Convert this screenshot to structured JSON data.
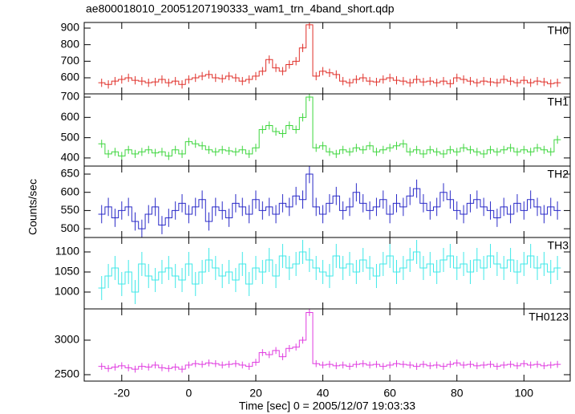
{
  "chart_data": [
    {
      "type": "step",
      "title": "ae800018010_20051207190333_wam1_trn_4band_short.qdp",
      "label": "TH0",
      "color": "#e0302a",
      "error": 25,
      "x": [
        -26,
        -24,
        -22,
        -20,
        -18,
        -16,
        -14,
        -12,
        -10,
        -8,
        -6,
        -4,
        -2,
        0,
        2,
        4,
        6,
        8,
        10,
        12,
        14,
        16,
        18,
        20,
        22,
        24,
        26,
        28,
        30,
        32,
        34,
        36,
        38,
        40,
        42,
        44,
        46,
        48,
        50,
        52,
        54,
        56,
        58,
        60,
        62,
        64,
        66,
        68,
        70,
        72,
        74,
        76,
        78,
        80,
        82,
        84,
        86,
        88,
        90,
        92,
        94,
        96,
        98,
        100,
        102,
        104,
        106,
        108,
        110
      ],
      "values": [
        570,
        560,
        580,
        590,
        600,
        585,
        580,
        570,
        575,
        590,
        570,
        580,
        560,
        590,
        600,
        610,
        620,
        600,
        595,
        610,
        600,
        580,
        590,
        610,
        640,
        710,
        660,
        640,
        680,
        700,
        780,
        920,
        610,
        640,
        630,
        620,
        580,
        570,
        590,
        600,
        580,
        575,
        590,
        600,
        585,
        580,
        570,
        590,
        575,
        580,
        570,
        580,
        565,
        600,
        590,
        580,
        570,
        580,
        575,
        570,
        590,
        580,
        570,
        585,
        570,
        580,
        575,
        565,
        570
      ],
      "xlim": [
        -31.2,
        113.8
      ],
      "ylim": [
        503,
        934
      ],
      "yticks": [
        600,
        700,
        800,
        900
      ]
    },
    {
      "type": "step",
      "label": "TH1",
      "color": "#3ed63e",
      "error": 20,
      "x": [
        -26,
        -24,
        -22,
        -20,
        -18,
        -16,
        -14,
        -12,
        -10,
        -8,
        -6,
        -4,
        -2,
        0,
        2,
        4,
        6,
        8,
        10,
        12,
        14,
        16,
        18,
        20,
        22,
        24,
        26,
        28,
        30,
        32,
        34,
        36,
        38,
        40,
        42,
        44,
        46,
        48,
        50,
        52,
        54,
        56,
        58,
        60,
        62,
        64,
        66,
        68,
        70,
        72,
        74,
        76,
        78,
        80,
        82,
        84,
        86,
        88,
        90,
        92,
        94,
        96,
        98,
        100,
        102,
        104,
        106,
        108,
        110
      ],
      "values": [
        470,
        420,
        430,
        410,
        440,
        420,
        430,
        440,
        425,
        430,
        410,
        440,
        420,
        480,
        470,
        460,
        440,
        430,
        440,
        435,
        430,
        440,
        420,
        450,
        540,
        560,
        530,
        520,
        560,
        540,
        600,
        700,
        450,
        460,
        430,
        420,
        440,
        430,
        450,
        440,
        460,
        430,
        440,
        450,
        460,
        470,
        430,
        440,
        420,
        440,
        430,
        420,
        440,
        430,
        450,
        440,
        430,
        420,
        440,
        430,
        440,
        450,
        430,
        440,
        430,
        450,
        440,
        430,
        490
      ],
      "xlim": [
        -31.2,
        113.8
      ],
      "ylim": [
        360,
        716
      ],
      "yticks": [
        400,
        500,
        600,
        700
      ]
    },
    {
      "type": "step",
      "label": "TH2",
      "color": "#2a2ac8",
      "error": 25,
      "ylabel": "Counts/sec",
      "x": [
        -26,
        -24,
        -22,
        -20,
        -18,
        -16,
        -14,
        -12,
        -10,
        -8,
        -6,
        -4,
        -2,
        0,
        2,
        4,
        6,
        8,
        10,
        12,
        14,
        16,
        18,
        20,
        22,
        24,
        26,
        28,
        30,
        32,
        34,
        36,
        38,
        40,
        42,
        44,
        46,
        48,
        50,
        52,
        54,
        56,
        58,
        60,
        62,
        64,
        66,
        68,
        70,
        72,
        74,
        76,
        78,
        80,
        82,
        84,
        86,
        88,
        90,
        92,
        94,
        96,
        98,
        100,
        102,
        104,
        106,
        108,
        110
      ],
      "values": [
        540,
        560,
        530,
        550,
        560,
        520,
        500,
        540,
        560,
        510,
        530,
        550,
        570,
        540,
        560,
        580,
        520,
        560,
        550,
        530,
        570,
        560,
        540,
        580,
        550,
        560,
        540,
        570,
        560,
        590,
        580,
        650,
        560,
        540,
        570,
        590,
        550,
        560,
        600,
        570,
        550,
        560,
        580,
        540,
        570,
        560,
        590,
        610,
        570,
        550,
        560,
        600,
        580,
        550,
        540,
        570,
        580,
        560,
        550,
        530,
        560,
        540,
        570,
        550,
        580,
        560,
        540,
        560,
        550
      ],
      "xlim": [
        -31.2,
        113.8
      ],
      "ylim": [
        476,
        672
      ],
      "yticks": [
        500,
        550,
        600,
        650
      ]
    },
    {
      "type": "step",
      "label": "TH3",
      "color": "#3ee8e8",
      "error": 30,
      "x": [
        -26,
        -24,
        -22,
        -20,
        -18,
        -16,
        -14,
        -12,
        -10,
        -8,
        -6,
        -4,
        -2,
        0,
        2,
        4,
        6,
        8,
        10,
        12,
        14,
        16,
        18,
        20,
        22,
        24,
        26,
        28,
        30,
        32,
        34,
        36,
        38,
        40,
        42,
        44,
        46,
        48,
        50,
        52,
        54,
        56,
        58,
        60,
        62,
        64,
        66,
        68,
        70,
        72,
        74,
        76,
        78,
        80,
        82,
        84,
        86,
        88,
        90,
        92,
        94,
        96,
        98,
        100,
        102,
        104,
        106,
        108,
        110
      ],
      "values": [
        1010,
        1040,
        1060,
        1020,
        1050,
        1000,
        1070,
        1040,
        1030,
        1050,
        1060,
        1040,
        1030,
        1070,
        1020,
        1050,
        1080,
        1060,
        1040,
        1050,
        1030,
        1070,
        1020,
        1060,
        1050,
        1080,
        1040,
        1090,
        1060,
        1070,
        1100,
        1080,
        1060,
        1050,
        1040,
        1090,
        1060,
        1070,
        1050,
        1080,
        1060,
        1040,
        1070,
        1090,
        1050,
        1060,
        1080,
        1100,
        1060,
        1070,
        1050,
        1080,
        1090,
        1060,
        1070,
        1050,
        1080,
        1060,
        1090,
        1070,
        1060,
        1080,
        1050,
        1070,
        1090,
        1060,
        1070,
        1050,
        1060
      ],
      "xlim": [
        -31.2,
        113.8
      ],
      "ylim": [
        958,
        1136
      ],
      "yticks": [
        1000,
        1050,
        1100
      ]
    },
    {
      "type": "step",
      "label": "TH0123",
      "color": "#e03ee0",
      "error": 50,
      "xlabel": "Time [sec] 0 = 2005/12/07 19:03:33",
      "x": [
        -26,
        -24,
        -22,
        -20,
        -18,
        -16,
        -14,
        -12,
        -10,
        -8,
        -6,
        -4,
        -2,
        0,
        2,
        4,
        6,
        8,
        10,
        12,
        14,
        16,
        18,
        20,
        22,
        24,
        26,
        28,
        30,
        32,
        34,
        36,
        38,
        40,
        42,
        44,
        46,
        48,
        50,
        52,
        54,
        56,
        58,
        60,
        62,
        64,
        66,
        68,
        70,
        72,
        74,
        76,
        78,
        80,
        82,
        84,
        86,
        88,
        90,
        92,
        94,
        96,
        98,
        100,
        102,
        104,
        106,
        108,
        110
      ],
      "values": [
        2620,
        2590,
        2610,
        2630,
        2600,
        2580,
        2620,
        2610,
        2640,
        2600,
        2590,
        2610,
        2580,
        2640,
        2660,
        2650,
        2670,
        2660,
        2640,
        2650,
        2660,
        2640,
        2620,
        2680,
        2820,
        2790,
        2850,
        2760,
        2880,
        2900,
        3000,
        3400,
        2660,
        2640,
        2650,
        2630,
        2640,
        2620,
        2650,
        2660,
        2640,
        2650,
        2620,
        2640,
        2660,
        2650,
        2640,
        2620,
        2650,
        2630,
        2640,
        2620,
        2650,
        2670,
        2640,
        2650,
        2630,
        2640,
        2650,
        2620,
        2640,
        2650,
        2630,
        2660,
        2640,
        2650,
        2630,
        2640,
        2650
      ],
      "xlim": [
        -31.2,
        113.8
      ],
      "ylim": [
        2407,
        3453
      ],
      "yticks": [
        2500,
        3000
      ],
      "xticks": [
        -20,
        0,
        20,
        40,
        60,
        80,
        100
      ]
    }
  ]
}
